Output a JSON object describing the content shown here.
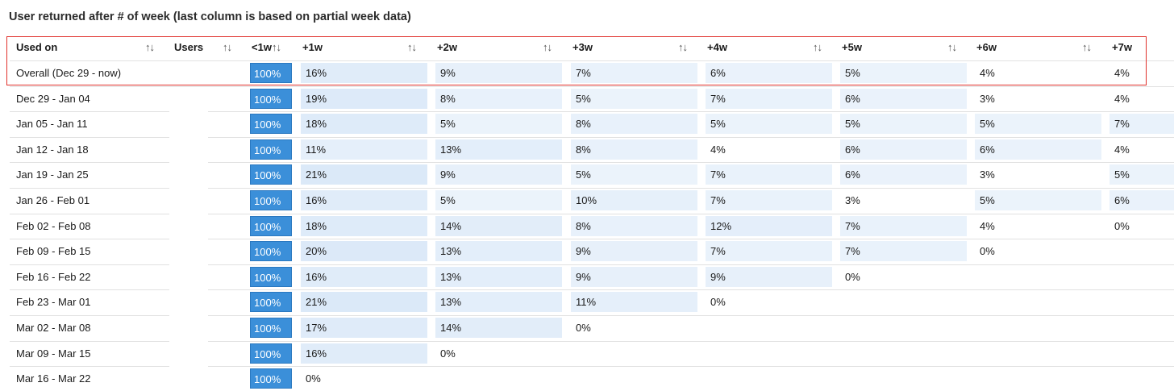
{
  "title": "User returned after # of week (last column is based on partial week data)",
  "headers": {
    "used_on": "Used on",
    "users": "Users",
    "w0": "<1w",
    "w1": "+1w",
    "w2": "+2w",
    "w3": "+3w",
    "w4": "+4w",
    "w5": "+5w",
    "w6": "+6w",
    "w7": "+7w",
    "sort_glyph": "↑↓"
  },
  "colors": {
    "base_fill": "#3b8fd9",
    "highlight_border": "#e0302b"
  },
  "rows": [
    {
      "label": "Overall (Dec 29 - now)",
      "values": [
        "100%",
        "16%",
        "9%",
        "7%",
        "6%",
        "5%",
        "4%",
        "4%"
      ]
    },
    {
      "label": "Dec 29 - Jan 04",
      "values": [
        "100%",
        "19%",
        "8%",
        "5%",
        "7%",
        "6%",
        "3%",
        "4%"
      ]
    },
    {
      "label": "Jan 05 - Jan 11",
      "values": [
        "100%",
        "18%",
        "5%",
        "8%",
        "5%",
        "5%",
        "5%",
        "7%"
      ]
    },
    {
      "label": "Jan 12 - Jan 18",
      "values": [
        "100%",
        "11%",
        "13%",
        "8%",
        "4%",
        "6%",
        "6%",
        "4%"
      ]
    },
    {
      "label": "Jan 19 - Jan 25",
      "values": [
        "100%",
        "21%",
        "9%",
        "5%",
        "7%",
        "6%",
        "3%",
        "5%"
      ]
    },
    {
      "label": "Jan 26 - Feb 01",
      "values": [
        "100%",
        "16%",
        "5%",
        "10%",
        "7%",
        "3%",
        "5%",
        "6%"
      ]
    },
    {
      "label": "Feb 02 - Feb 08",
      "values": [
        "100%",
        "18%",
        "14%",
        "8%",
        "12%",
        "7%",
        "4%",
        "0%"
      ]
    },
    {
      "label": "Feb 09 - Feb 15",
      "values": [
        "100%",
        "20%",
        "13%",
        "9%",
        "7%",
        "7%",
        "0%"
      ]
    },
    {
      "label": "Feb 16 - Feb 22",
      "values": [
        "100%",
        "16%",
        "13%",
        "9%",
        "9%",
        "0%"
      ]
    },
    {
      "label": "Feb 23 - Mar 01",
      "values": [
        "100%",
        "21%",
        "13%",
        "11%",
        "0%"
      ]
    },
    {
      "label": "Mar 02 - Mar 08",
      "values": [
        "100%",
        "17%",
        "14%",
        "0%"
      ]
    },
    {
      "label": "Mar 09 - Mar 15",
      "values": [
        "100%",
        "16%",
        "0%"
      ]
    },
    {
      "label": "Mar 16 - Mar 22",
      "values": [
        "100%",
        "0%"
      ]
    }
  ]
}
